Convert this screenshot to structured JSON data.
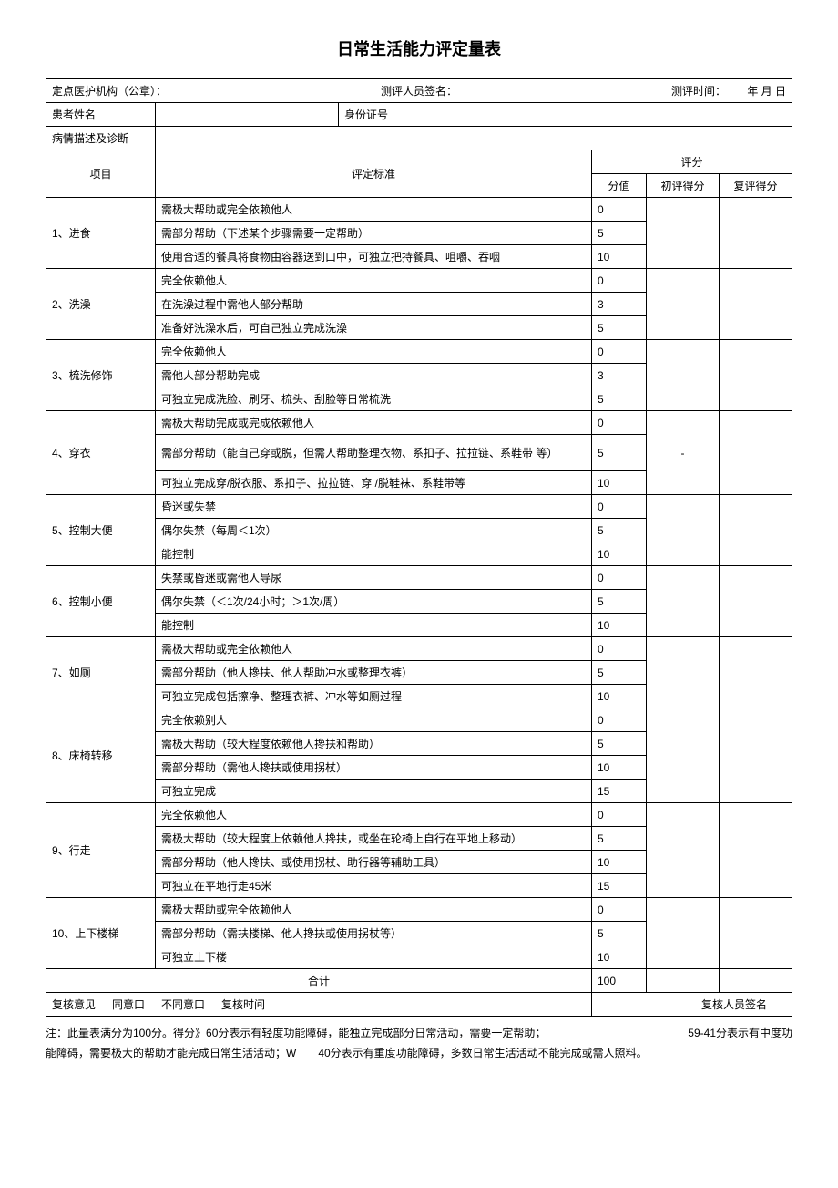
{
  "title": "日常生活能力评定量表",
  "header": {
    "org_label": "定点医护机构（公章）：",
    "assessor_label": "测评人员签名：",
    "time_label": "测评时间：",
    "time_value": "年 月 日",
    "patient_name_label": "患者姓名",
    "id_label": "身份证号",
    "diagnosis_label": "病情描述及诊断"
  },
  "col_headers": {
    "item": "项目",
    "criteria": "评定标准",
    "score_group": "评分",
    "score_value": "分值",
    "initial": "初评得分",
    "review": "复评得分"
  },
  "items": [
    {
      "name": "1、进食",
      "rows": [
        {
          "criteria": "需极大帮助或完全依赖他人",
          "score": "0"
        },
        {
          "criteria": "需部分帮助（下述某个步骤需要一定帮助）",
          "score": "5"
        },
        {
          "criteria": "使用合适的餐具将食物由容器送到口中，可独立把持餐具、咀嚼、吞咽",
          "score": "10"
        }
      ]
    },
    {
      "name": "2、洗澡",
      "rows": [
        {
          "criteria": "完全依赖他人",
          "score": "0"
        },
        {
          "criteria": "在洗澡过程中需他人部分帮助",
          "score": "3"
        },
        {
          "criteria": "准备好洗澡水后，可自己独立完成洗澡",
          "score": "5"
        }
      ]
    },
    {
      "name": "3、梳洗修饰",
      "rows": [
        {
          "criteria": "完全依赖他人",
          "score": "0"
        },
        {
          "criteria": "需他人部分帮助完成",
          "score": "3"
        },
        {
          "criteria": "可独立完成洗脸、刷牙、梳头、刮脸等日常梳洗",
          "score": "5"
        }
      ]
    },
    {
      "name": "4、穿衣",
      "rows": [
        {
          "criteria": "需极大帮助完成或完成依赖他人",
          "score": "0"
        },
        {
          "criteria": "需部分帮助（能自己穿或脱，但需人帮助整理衣物、系扣子、拉拉链、系鞋带 等）",
          "score": "5"
        },
        {
          "criteria": "可独立完成穿/脱衣服、系扣子、拉拉链、穿 /脱鞋袜、系鞋带等",
          "score": "10"
        }
      ]
    },
    {
      "name": "5、控制大便",
      "rows": [
        {
          "criteria": "昏迷或失禁",
          "score": "0"
        },
        {
          "criteria": "偶尔失禁（每周＜1次）",
          "score": "5"
        },
        {
          "criteria": "能控制",
          "score": "10"
        }
      ]
    },
    {
      "name": "6、控制小便",
      "rows": [
        {
          "criteria": "失禁或昏迷或需他人导尿",
          "score": "0"
        },
        {
          "criteria": "偶尔失禁（＜1次/24小时；＞1次/周）",
          "score": "5"
        },
        {
          "criteria": "能控制",
          "score": "10"
        }
      ]
    },
    {
      "name": "7、如厕",
      "rows": [
        {
          "criteria": "需极大帮助或完全依赖他人",
          "score": "0"
        },
        {
          "criteria": "需部分帮助（他人搀扶、他人帮助冲水或整理衣裤）",
          "score": "5"
        },
        {
          "criteria": "可独立完成包括擦净、整理衣裤、冲水等如厕过程",
          "score": "10"
        }
      ]
    },
    {
      "name": "8、床椅转移",
      "rows": [
        {
          "criteria": "完全依赖别人",
          "score": "0"
        },
        {
          "criteria": "需极大帮助（较大程度依赖他人搀扶和帮助）",
          "score": "5"
        },
        {
          "criteria": "需部分帮助（需他人搀扶或使用拐杖）",
          "score": "10"
        },
        {
          "criteria": "可独立完成",
          "score": "15"
        }
      ]
    },
    {
      "name": "9、行走",
      "rows": [
        {
          "criteria": "完全依赖他人",
          "score": "0"
        },
        {
          "criteria": "需极大帮助（较大程度上依赖他人搀扶，或坐在轮椅上自行在平地上移动）",
          "score": "5"
        },
        {
          "criteria": "需部分帮助（他人搀扶、或使用拐杖、助行器等辅助工具）",
          "score": "10"
        },
        {
          "criteria": "可独立在平地行走45米",
          "score": "15"
        }
      ]
    },
    {
      "name": "10、上下楼梯",
      "rows": [
        {
          "criteria": "需极大帮助或完全依赖他人",
          "score": "0"
        },
        {
          "criteria": "需部分帮助（需扶楼梯、他人搀扶或使用拐杖等）",
          "score": "5"
        },
        {
          "criteria": "可独立上下楼",
          "score": "10"
        }
      ]
    }
  ],
  "total": {
    "label": "合计",
    "value": "100"
  },
  "footer": {
    "review_opinion_label": "复核意见",
    "agree": "同意口",
    "disagree": "不同意口",
    "review_time_label": "复核时间",
    "reviewer_label": "复核人员签名"
  },
  "notes": {
    "line1_a": "注：此量表满分为100分。得分》60分表示有轻度功能障碍，能独立完成部分日常活动，需要一定帮助；",
    "line1_b": "59-41分表示有中度功",
    "line2": "能障碍，需要极大的帮助才能完成日常生活活动；W　　40分表示有重度功能障碍，多数日常生活活动不能完成或需人照料。"
  }
}
